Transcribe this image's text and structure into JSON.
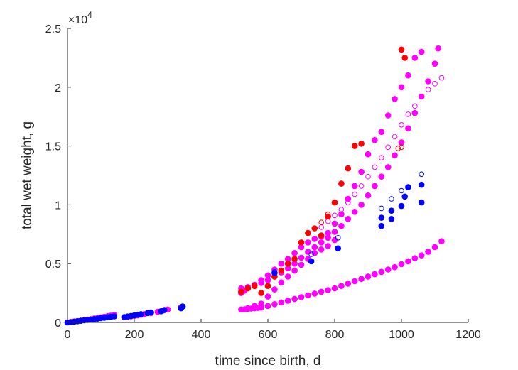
{
  "chart_data": {
    "type": "scatter",
    "title": "",
    "xlabel": "time since birth, d",
    "ylabel": "total wet weight, g",
    "xlim": [
      0,
      1200
    ],
    "ylim": [
      0,
      25000
    ],
    "x_ticks": [
      0,
      200,
      400,
      600,
      800,
      1000,
      1200
    ],
    "y_ticks": [
      0,
      0.5,
      1,
      1.5,
      2,
      2.5
    ],
    "y_tick_labels": [
      "0",
      "0.5",
      "1",
      "1.5",
      "2",
      "2.5"
    ],
    "y_exponent": {
      "base": "×10",
      "power": "4"
    },
    "grid": false,
    "legend": "none",
    "colors": {
      "magenta": "#ff00ff",
      "red": "#ff0000",
      "blue": "#0000ff",
      "axis": "#262626"
    },
    "series": [
      {
        "color": "#ff00ff",
        "filled": true,
        "points": [
          [
            0,
            0
          ],
          [
            10,
            40
          ],
          [
            20,
            80
          ],
          [
            30,
            120
          ],
          [
            40,
            160
          ],
          [
            50,
            200
          ],
          [
            60,
            240
          ],
          [
            70,
            280
          ],
          [
            80,
            330
          ],
          [
            90,
            380
          ],
          [
            100,
            430
          ],
          [
            110,
            480
          ],
          [
            120,
            530
          ],
          [
            130,
            580
          ],
          [
            140,
            640
          ],
          [
            170,
            450
          ],
          [
            180,
            480
          ],
          [
            190,
            520
          ],
          [
            200,
            560
          ],
          [
            210,
            600
          ],
          [
            220,
            650
          ],
          [
            230,
            700
          ],
          [
            250,
            800
          ],
          [
            270,
            900
          ],
          [
            285,
            1000
          ],
          [
            300,
            1100
          ],
          [
            340,
            1300
          ],
          [
            520,
            1100
          ],
          [
            530,
            1120
          ],
          [
            540,
            1150
          ],
          [
            550,
            1180
          ],
          [
            560,
            1200
          ],
          [
            570,
            1230
          ],
          [
            580,
            1260
          ],
          [
            600,
            1400
          ],
          [
            620,
            1550
          ],
          [
            640,
            1700
          ],
          [
            660,
            1850
          ],
          [
            680,
            2000
          ],
          [
            700,
            2150
          ],
          [
            720,
            2300
          ],
          [
            740,
            2450
          ],
          [
            760,
            2600
          ],
          [
            780,
            2750
          ],
          [
            800,
            2900
          ],
          [
            820,
            3100
          ],
          [
            840,
            3300
          ],
          [
            860,
            3500
          ],
          [
            880,
            3700
          ],
          [
            900,
            3900
          ],
          [
            920,
            4100
          ],
          [
            940,
            4300
          ],
          [
            960,
            4500
          ],
          [
            980,
            4700
          ],
          [
            1000,
            4950
          ],
          [
            1020,
            5200
          ],
          [
            1040,
            5450
          ],
          [
            1060,
            5700
          ],
          [
            1080,
            6000
          ],
          [
            1100,
            6400
          ],
          [
            1120,
            6900
          ],
          [
            520,
            2500
          ],
          [
            530,
            2700
          ],
          [
            540,
            2900
          ],
          [
            560,
            3100
          ],
          [
            580,
            3350
          ],
          [
            600,
            3600
          ],
          [
            620,
            3900
          ],
          [
            640,
            4250
          ],
          [
            660,
            4600
          ],
          [
            680,
            5000
          ],
          [
            700,
            5500
          ],
          [
            720,
            6000
          ],
          [
            740,
            6400
          ],
          [
            760,
            6800
          ],
          [
            780,
            7200
          ],
          [
            800,
            7700
          ],
          [
            820,
            8200
          ],
          [
            840,
            8800
          ],
          [
            860,
            9400
          ],
          [
            880,
            10000
          ],
          [
            900,
            10800
          ],
          [
            920,
            11600
          ],
          [
            940,
            12400
          ],
          [
            960,
            13200
          ],
          [
            980,
            14200
          ],
          [
            1000,
            15300
          ],
          [
            1020,
            16500
          ],
          [
            1040,
            17800
          ],
          [
            1060,
            19200
          ],
          [
            1080,
            20500
          ],
          [
            1100,
            22000
          ],
          [
            1110,
            23300
          ],
          [
            520,
            2900
          ],
          [
            540,
            3000
          ],
          [
            560,
            3200
          ],
          [
            580,
            3600
          ],
          [
            600,
            4000
          ],
          [
            620,
            4500
          ],
          [
            640,
            5000
          ],
          [
            660,
            5400
          ],
          [
            680,
            5900
          ],
          [
            700,
            6400
          ],
          [
            720,
            6800
          ],
          [
            740,
            7100
          ],
          [
            760,
            7300
          ],
          [
            780,
            7600
          ],
          [
            800,
            8400
          ],
          [
            820,
            9200
          ],
          [
            840,
            10500
          ],
          [
            860,
            11600
          ],
          [
            880,
            12800
          ],
          [
            900,
            14300
          ],
          [
            920,
            15500
          ],
          [
            940,
            16200
          ],
          [
            960,
            17600
          ],
          [
            980,
            19000
          ],
          [
            1000,
            20000
          ],
          [
            1020,
            21000
          ],
          [
            1040,
            22500
          ],
          [
            1060,
            23000
          ],
          [
            540,
            1200
          ],
          [
            560,
            1400
          ],
          [
            580,
            1600
          ],
          [
            600,
            2200
          ],
          [
            620,
            2800
          ],
          [
            640,
            3400
          ],
          [
            660,
            3900
          ],
          [
            680,
            4400
          ],
          [
            700,
            4900
          ],
          [
            720,
            5400
          ],
          [
            740,
            5900
          ],
          [
            760,
            6200
          ],
          [
            780,
            6500
          ],
          [
            800,
            7000
          ]
        ]
      },
      {
        "color": "#ff00ff",
        "filled": false,
        "points": [
          [
            760,
            8100
          ],
          [
            780,
            8600
          ],
          [
            800,
            9100
          ],
          [
            820,
            9600
          ],
          [
            840,
            10200
          ],
          [
            860,
            10900
          ],
          [
            880,
            11600
          ],
          [
            900,
            12400
          ],
          [
            920,
            13200
          ],
          [
            940,
            14000
          ],
          [
            960,
            14900
          ],
          [
            980,
            15800
          ],
          [
            1000,
            16800
          ],
          [
            1020,
            17700
          ],
          [
            1040,
            18400
          ],
          [
            1060,
            19200
          ],
          [
            1080,
            19800
          ],
          [
            1100,
            20300
          ],
          [
            1120,
            20800
          ]
        ]
      },
      {
        "color": "#ff0000",
        "filled": true,
        "points": [
          [
            520,
            2600
          ],
          [
            540,
            2900
          ],
          [
            560,
            3100
          ],
          [
            580,
            2500
          ],
          [
            600,
            3100
          ],
          [
            620,
            3900
          ],
          [
            640,
            4400
          ],
          [
            660,
            5000
          ],
          [
            680,
            5400
          ],
          [
            700,
            6800
          ],
          [
            720,
            7600
          ],
          [
            740,
            8000
          ],
          [
            760,
            7400
          ],
          [
            780,
            9000
          ],
          [
            800,
            10200
          ],
          [
            820,
            11800
          ],
          [
            840,
            13100
          ],
          [
            860,
            15000
          ],
          [
            880,
            15200
          ],
          [
            1000,
            23200
          ],
          [
            1010,
            22500
          ]
        ]
      },
      {
        "color": "#ff0000",
        "filled": false,
        "points": [
          [
            760,
            8500
          ],
          [
            780,
            9200
          ],
          [
            990,
            14800
          ],
          [
            1000,
            14900
          ]
        ]
      },
      {
        "color": "#0000ff",
        "filled": true,
        "points": [
          [
            0,
            0
          ],
          [
            10,
            20
          ],
          [
            20,
            60
          ],
          [
            30,
            100
          ],
          [
            40,
            140
          ],
          [
            50,
            180
          ],
          [
            60,
            210
          ],
          [
            70,
            240
          ],
          [
            80,
            280
          ],
          [
            90,
            320
          ],
          [
            100,
            360
          ],
          [
            110,
            400
          ],
          [
            120,
            440
          ],
          [
            130,
            480
          ],
          [
            140,
            520
          ],
          [
            170,
            450
          ],
          [
            180,
            500
          ],
          [
            190,
            550
          ],
          [
            200,
            600
          ],
          [
            210,
            650
          ],
          [
            220,
            700
          ],
          [
            240,
            800
          ],
          [
            250,
            850
          ],
          [
            280,
            950
          ],
          [
            290,
            1050
          ],
          [
            340,
            1200
          ],
          [
            345,
            1350
          ],
          [
            620,
            4200
          ],
          [
            730,
            5200
          ],
          [
            810,
            6300
          ],
          [
            940,
            8200
          ],
          [
            940,
            8900
          ],
          [
            970,
            8800
          ],
          [
            970,
            9500
          ],
          [
            1000,
            9900
          ],
          [
            1010,
            10700
          ],
          [
            1020,
            11500
          ],
          [
            1060,
            10200
          ],
          [
            1060,
            11700
          ]
        ]
      },
      {
        "color": "#0000ff",
        "filled": false,
        "points": [
          [
            620,
            4300
          ],
          [
            730,
            5800
          ],
          [
            810,
            7200
          ],
          [
            940,
            9700
          ],
          [
            970,
            10500
          ],
          [
            1000,
            11200
          ],
          [
            1060,
            12600
          ]
        ]
      }
    ]
  }
}
